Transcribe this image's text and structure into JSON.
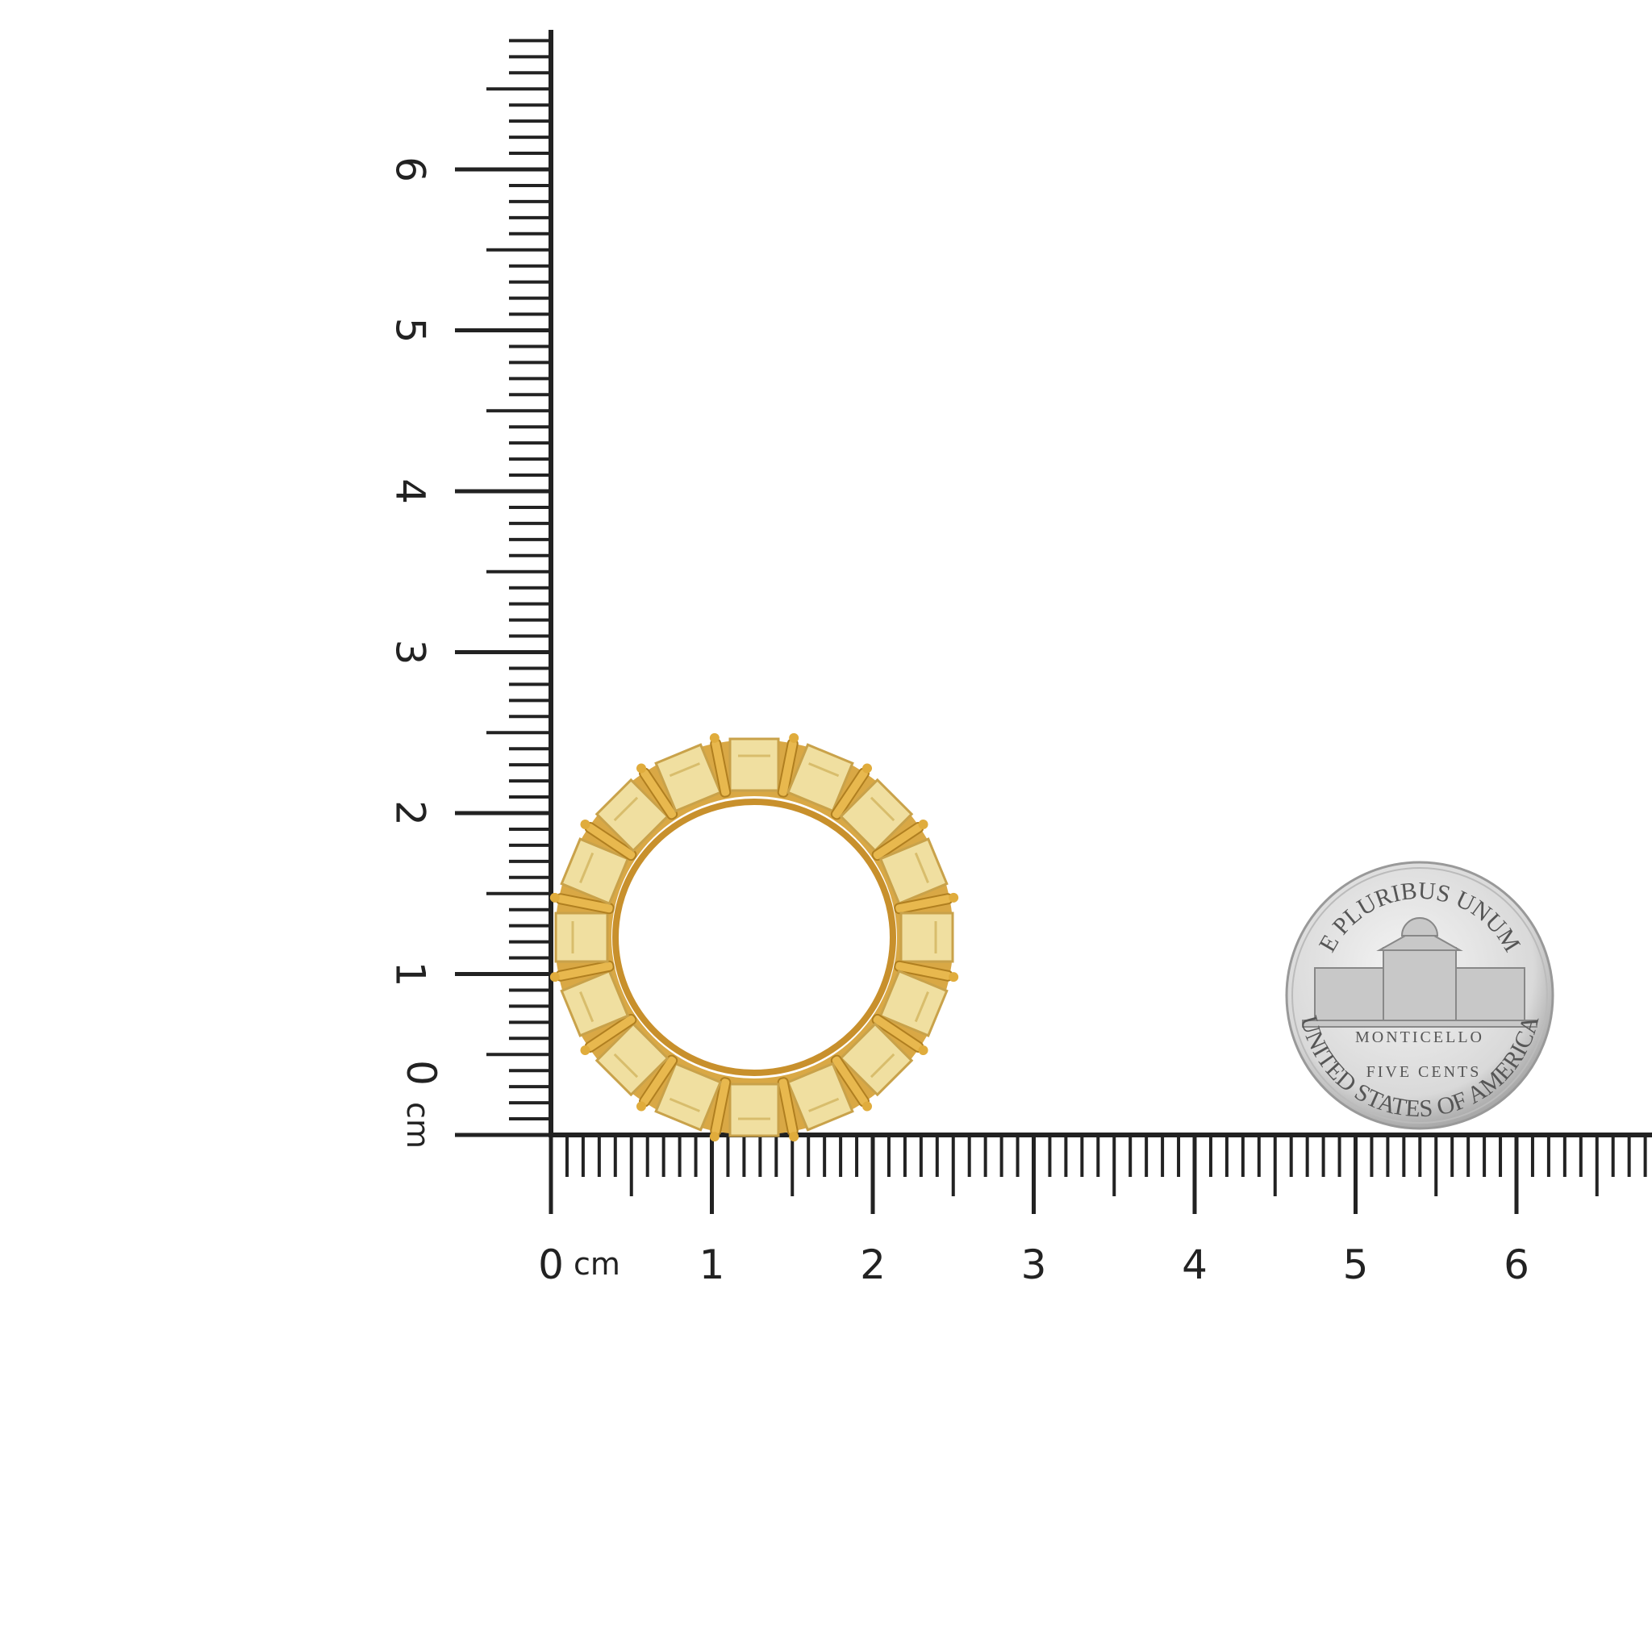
{
  "horizontal_ruler": {
    "zero": "0",
    "unit": "cm",
    "labels": [
      "1",
      "2",
      "3",
      "4",
      "5",
      "6"
    ]
  },
  "vertical_ruler": {
    "zero": "0",
    "unit": "cm",
    "labels": [
      "1",
      "2",
      "3",
      "4",
      "5",
      "6"
    ]
  },
  "coin": {
    "top": "E PLURIBUS UNUM",
    "building": "MONTICELLO",
    "value": "FIVE CENTS",
    "bottom": "UNITED STATES OF AMERICA"
  }
}
